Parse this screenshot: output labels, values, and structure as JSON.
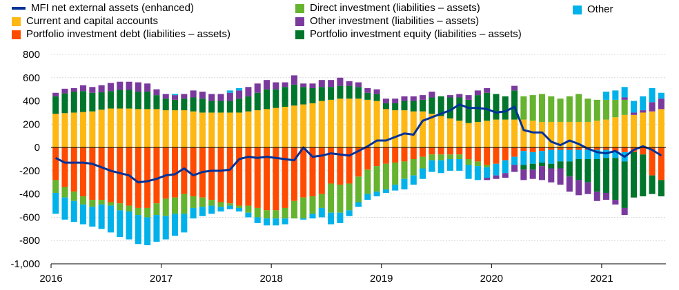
{
  "chart_data": {
    "type": "bar",
    "stacked": true,
    "title": "",
    "xlabel": "",
    "ylabel": "",
    "ylim": [
      -1000,
      800
    ],
    "yticks": [
      {
        "value": 800,
        "label": "800"
      },
      {
        "value": 600,
        "label": "600"
      },
      {
        "value": 400,
        "label": "400"
      },
      {
        "value": 200,
        "label": "200"
      },
      {
        "value": 0,
        "label": "0"
      },
      {
        "value": -200,
        "label": "-200"
      },
      {
        "value": -400,
        "label": "-400"
      },
      {
        "value": -600,
        "label": "-600"
      },
      {
        "value": -800,
        "label": "-800"
      },
      {
        "value": -1000,
        "label": "-1,000"
      }
    ],
    "xtick_labels": [
      "2016",
      "2017",
      "2018",
      "2019",
      "2020",
      "2021"
    ],
    "x_start": "2016-01",
    "grid": "horizontal",
    "legend_placement": "top",
    "categories": [
      "2016-01",
      "2016-02",
      "2016-03",
      "2016-04",
      "2016-05",
      "2016-06",
      "2016-07",
      "2016-08",
      "2016-09",
      "2016-10",
      "2016-11",
      "2016-12",
      "2017-01",
      "2017-02",
      "2017-03",
      "2017-04",
      "2017-05",
      "2017-06",
      "2017-07",
      "2017-08",
      "2017-09",
      "2017-10",
      "2017-11",
      "2017-12",
      "2018-01",
      "2018-02",
      "2018-03",
      "2018-04",
      "2018-05",
      "2018-06",
      "2018-07",
      "2018-08",
      "2018-09",
      "2018-10",
      "2018-11",
      "2018-12",
      "2019-01",
      "2019-02",
      "2019-03",
      "2019-04",
      "2019-05",
      "2019-06",
      "2019-07",
      "2019-08",
      "2019-09",
      "2019-10",
      "2019-11",
      "2019-12",
      "2020-01",
      "2020-02",
      "2020-03",
      "2020-04",
      "2020-05",
      "2020-06",
      "2020-07",
      "2020-08",
      "2020-09",
      "2020-10",
      "2020-11",
      "2020-12",
      "2021-01",
      "2021-02",
      "2021-03",
      "2021-04",
      "2021-05",
      "2021-06",
      "2021-07"
    ],
    "bar_series": [
      {
        "name": "Current and capital accounts",
        "color": "#FDB813",
        "values": [
          290,
          295,
          300,
          305,
          310,
          325,
          335,
          335,
          335,
          330,
          330,
          330,
          320,
          320,
          320,
          310,
          300,
          300,
          300,
          300,
          300,
          310,
          320,
          330,
          340,
          350,
          360,
          370,
          380,
          400,
          410,
          420,
          420,
          420,
          410,
          400,
          330,
          320,
          320,
          310,
          310,
          290,
          270,
          250,
          230,
          210,
          220,
          230,
          240,
          240,
          240,
          240,
          230,
          220,
          220,
          220,
          220,
          220,
          220,
          230,
          240,
          260,
          280,
          280,
          300,
          310,
          330
        ]
      },
      {
        "name": "Direct investment (liabilities – assets)",
        "color": "#65B32E",
        "values": [
          0,
          0,
          0,
          0,
          0,
          0,
          0,
          0,
          0,
          0,
          0,
          0,
          0,
          0,
          0,
          0,
          0,
          0,
          0,
          0,
          0,
          0,
          0,
          0,
          0,
          0,
          0,
          0,
          0,
          0,
          0,
          0,
          0,
          0,
          0,
          0,
          0,
          0,
          0,
          0,
          0,
          0,
          0,
          0,
          0,
          0,
          0,
          0,
          0,
          0,
          0,
          200,
          220,
          240,
          220,
          200,
          220,
          240,
          200,
          180,
          170,
          150,
          130,
          0,
          0,
          0,
          0
        ]
      },
      {
        "name": "Portfolio investment equity (liabilities – assets)",
        "color": "#00752C",
        "values": [
          150,
          170,
          180,
          180,
          160,
          150,
          150,
          160,
          160,
          150,
          150,
          120,
          100,
          90,
          100,
          120,
          120,
          100,
          100,
          100,
          120,
          130,
          150,
          170,
          160,
          170,
          180,
          150,
          130,
          120,
          110,
          110,
          110,
          100,
          60,
          60,
          50,
          60,
          80,
          90,
          100,
          140,
          170,
          180,
          200,
          200,
          230,
          240,
          220,
          200,
          250,
          0,
          0,
          0,
          0,
          0,
          0,
          0,
          0,
          0,
          0,
          0,
          0,
          0,
          0,
          0,
          0
        ]
      },
      {
        "name": "Other investment (liabilities – assets)",
        "color": "#7A3A9D",
        "values": [
          30,
          40,
          30,
          50,
          50,
          60,
          70,
          70,
          70,
          80,
          70,
          50,
          40,
          40,
          40,
          60,
          60,
          60,
          60,
          70,
          70,
          80,
          80,
          80,
          60,
          40,
          80,
          30,
          40,
          60,
          60,
          70,
          40,
          40,
          40,
          40,
          40,
          40,
          40,
          40,
          40,
          50,
          0,
          20,
          30,
          40,
          40,
          40,
          0,
          0,
          40,
          0,
          0,
          0,
          0,
          0,
          0,
          0,
          0,
          0,
          0,
          0,
          20,
          20,
          20,
          80,
          90
        ]
      },
      {
        "name": "Other",
        "color": "#00B1EA",
        "values": [
          0,
          0,
          0,
          0,
          0,
          0,
          0,
          0,
          0,
          0,
          0,
          0,
          0,
          10,
          0,
          0,
          0,
          0,
          0,
          20,
          20,
          0,
          0,
          0,
          0,
          0,
          0,
          0,
          0,
          0,
          0,
          0,
          0,
          0,
          0,
          0,
          0,
          0,
          0,
          0,
          0,
          0,
          0,
          0,
          0,
          0,
          0,
          0,
          0,
          0,
          0,
          0,
          0,
          0,
          0,
          0,
          0,
          0,
          0,
          0,
          70,
          80,
          90,
          100,
          120,
          120,
          50
        ]
      },
      {
        "name": "Portfolio investment debt (liabilities – assets)",
        "color": "#FF4B00",
        "values": [
          -280,
          -340,
          -380,
          -420,
          -450,
          -450,
          -470,
          -480,
          -500,
          -520,
          -520,
          -480,
          -440,
          -430,
          -400,
          -420,
          -430,
          -450,
          -470,
          -480,
          -500,
          -500,
          -520,
          -540,
          -540,
          -520,
          -460,
          -430,
          -420,
          -400,
          -310,
          -320,
          -310,
          -250,
          -190,
          -160,
          -140,
          -130,
          -120,
          -100,
          -80,
          -60,
          -60,
          -60,
          -60,
          -100,
          -120,
          -150,
          -140,
          -110,
          -80,
          -30,
          -40,
          -30,
          -20,
          -20,
          -20,
          -20,
          -20,
          -20,
          -20,
          -30,
          -40,
          -40,
          -60,
          -240,
          -280
        ]
      },
      {
        "name": "Direct investment (liabilities – assets)",
        "color": "#65B32E",
        "values": [
          -110,
          -90,
          -80,
          -70,
          -60,
          -40,
          -30,
          -60,
          -50,
          -60,
          -80,
          -100,
          -150,
          -140,
          -170,
          -100,
          -80,
          -50,
          -40,
          -20,
          -20,
          -60,
          -80,
          -70,
          -70,
          -90,
          -150,
          -180,
          -150,
          -120,
          -250,
          -240,
          -230,
          -220,
          -210,
          -220,
          -220,
          -190,
          -150,
          -140,
          -100,
          -50,
          -50,
          -40,
          -40,
          -50,
          -40,
          -20,
          0,
          0,
          0,
          0,
          0,
          0,
          0,
          0,
          0,
          0,
          0,
          0,
          0,
          0,
          0,
          0,
          0,
          0,
          0
        ]
      },
      {
        "name": "Other",
        "color": "#00B1EA",
        "values": [
          -180,
          -190,
          -180,
          -170,
          -170,
          -210,
          -230,
          -230,
          -240,
          -250,
          -240,
          -230,
          -200,
          -190,
          -160,
          -90,
          -80,
          -70,
          -40,
          -30,
          -30,
          -40,
          -50,
          -60,
          -60,
          -50,
          0,
          -10,
          -40,
          -80,
          -100,
          -90,
          -50,
          -40,
          -50,
          -40,
          -30,
          -50,
          -90,
          -80,
          -90,
          -100,
          -110,
          -100,
          -100,
          -120,
          -120,
          -90,
          -100,
          -110,
          -70,
          -120,
          -100,
          -100,
          -120,
          -100,
          -100,
          -80,
          -80,
          -80,
          -70,
          -60,
          -80,
          0,
          0,
          0,
          0
        ]
      },
      {
        "name": "Portfolio investment equity (liabilities – assets)",
        "color": "#00752C",
        "values": [
          0,
          0,
          0,
          0,
          0,
          0,
          0,
          0,
          0,
          0,
          0,
          0,
          0,
          0,
          0,
          0,
          0,
          0,
          0,
          0,
          0,
          0,
          0,
          0,
          0,
          0,
          0,
          0,
          0,
          0,
          0,
          0,
          0,
          0,
          0,
          0,
          0,
          0,
          0,
          0,
          0,
          0,
          0,
          0,
          0,
          0,
          0,
          0,
          0,
          0,
          0,
          -40,
          -50,
          -30,
          -40,
          -60,
          -130,
          -180,
          -200,
          -280,
          -300,
          -360,
          -400,
          -390,
          -360,
          -160,
          -140
        ]
      },
      {
        "name": "Other investment (liabilities – assets)",
        "color": "#7A3A9D",
        "values": [
          0,
          0,
          0,
          0,
          0,
          0,
          0,
          0,
          0,
          0,
          0,
          0,
          0,
          0,
          0,
          0,
          0,
          0,
          0,
          0,
          0,
          0,
          0,
          0,
          0,
          0,
          0,
          0,
          0,
          0,
          0,
          0,
          0,
          0,
          0,
          0,
          0,
          0,
          0,
          0,
          0,
          0,
          0,
          0,
          0,
          0,
          0,
          -20,
          -30,
          -40,
          -60,
          -90,
          -80,
          -120,
          -120,
          -140,
          -130,
          -130,
          -100,
          -80,
          -60,
          -40,
          -60,
          0,
          0,
          0,
          0
        ]
      }
    ],
    "line_series": {
      "name": "MFI net external assets (enhanced)",
      "color": "#003299",
      "values": [
        -90,
        -130,
        -130,
        -130,
        -140,
        -170,
        -200,
        -220,
        -240,
        -300,
        -290,
        -270,
        -240,
        -230,
        -180,
        -240,
        -210,
        -200,
        -200,
        -190,
        -100,
        -80,
        -90,
        -80,
        -90,
        -100,
        -110,
        0,
        -80,
        -70,
        -50,
        -60,
        -70,
        -30,
        10,
        60,
        60,
        90,
        120,
        110,
        230,
        260,
        290,
        320,
        370,
        340,
        340,
        330,
        300,
        310,
        350,
        150,
        130,
        130,
        50,
        20,
        60,
        30,
        -10,
        -40,
        -50,
        -30,
        -80,
        -20,
        10,
        -20,
        -70
      ]
    },
    "legend": [
      {
        "name": "MFI net external assets (enhanced)",
        "kind": "line",
        "color": "#003299"
      },
      {
        "name": "Current and capital accounts",
        "kind": "box",
        "color": "#FDB813"
      },
      {
        "name": "Portfolio investment debt (liabilities – assets)",
        "kind": "box",
        "color": "#FF4B00"
      },
      {
        "name": "Direct investment (liabilities – assets)",
        "kind": "box",
        "color": "#65B32E"
      },
      {
        "name": "Other investment (liabilities – assets)",
        "kind": "box",
        "color": "#7A3A9D"
      },
      {
        "name": "Portfolio investment  equity (liabilities – assets)",
        "kind": "box",
        "color": "#00752C"
      },
      {
        "name": "Other",
        "kind": "box",
        "color": "#00B1EA"
      }
    ]
  }
}
